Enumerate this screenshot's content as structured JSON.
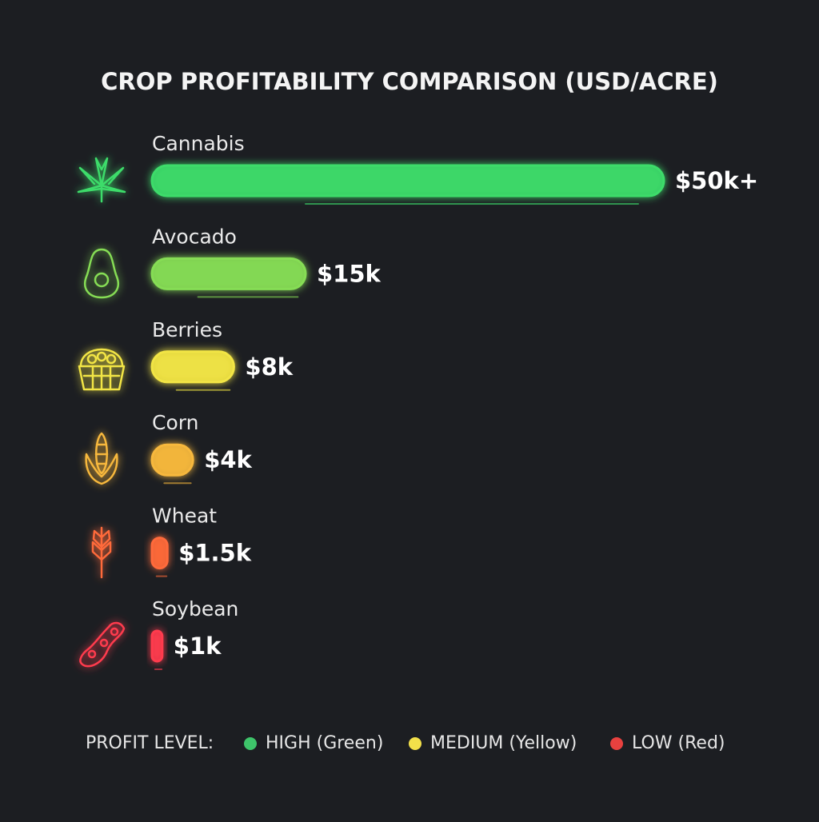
{
  "chart_data": {
    "type": "bar",
    "title": "CROP PROFITABILITY COMPARISON (USD/ACRE)",
    "categories": [
      "Cannabis",
      "Avocado",
      "Berries",
      "Corn",
      "Wheat",
      "Soybean"
    ],
    "values": [
      50,
      15,
      8,
      4,
      1.5,
      1
    ],
    "value_labels": [
      "$50k+",
      "$15k",
      "$8k",
      "$4k",
      "$1.5k",
      "$1k"
    ],
    "colors": [
      "#3ddc6a",
      "#86dd55",
      "#f2e544",
      "#f7b83c",
      "#ff6a3a",
      "#ff3b4e"
    ],
    "legend": {
      "title": "PROFIT LEVEL:",
      "items": [
        {
          "label": "HIGH (Green)",
          "color": "#3ec46a"
        },
        {
          "label": "MEDIUM (Yellow)",
          "color": "#f2e04a"
        },
        {
          "label": "LOW (Red)",
          "color": "#e8413f"
        }
      ]
    }
  }
}
